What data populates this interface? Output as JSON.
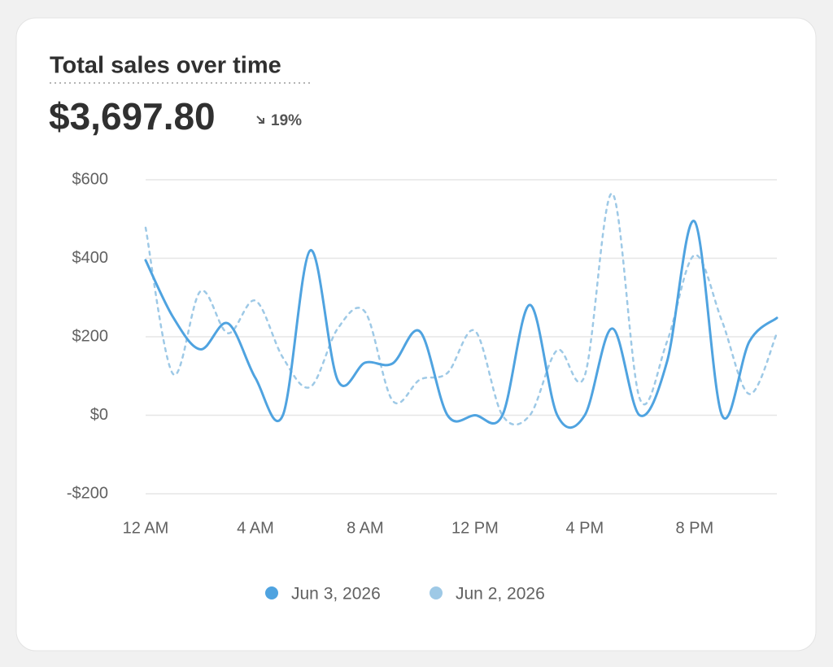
{
  "chart_data": {
    "type": "line",
    "title": "Total sales over time",
    "total": "$3,697.80",
    "change": "19%",
    "categories": [
      "12 AM",
      null,
      null,
      null,
      "4 AM",
      null,
      null,
      null,
      "8 AM",
      null,
      null,
      null,
      "12 PM",
      null,
      null,
      null,
      "4 PM",
      null,
      null,
      null,
      "8 PM",
      null,
      null,
      null
    ],
    "series": [
      {
        "name": "Jun 3, 2026",
        "color": "#4fa3e0",
        "line_style": "solid",
        "values": [
          395,
          250,
          168,
          234,
          95,
          0,
          420,
          89,
          134,
          132,
          213,
          0,
          0,
          0,
          281,
          0,
          0,
          221,
          0,
          137,
          494,
          0,
          188,
          248
        ]
      },
      {
        "name": "Jun 2, 2026",
        "color": "#9ec9e6",
        "line_style": "dashed",
        "values": [
          478,
          105,
          316,
          209,
          292,
          147,
          72,
          221,
          263,
          37,
          91,
          108,
          215,
          0,
          0,
          166,
          101,
          565,
          43,
          188,
          408,
          240,
          54,
          209
        ]
      }
    ],
    "ylim": [
      -200,
      600
    ],
    "yticks": [
      {
        "value": -200,
        "label": "-$200"
      },
      {
        "value": 0,
        "label": "$0"
      },
      {
        "value": 200,
        "label": "$200"
      },
      {
        "value": 400,
        "label": "$400"
      },
      {
        "value": 600,
        "label": "$600"
      }
    ],
    "grid": true
  }
}
